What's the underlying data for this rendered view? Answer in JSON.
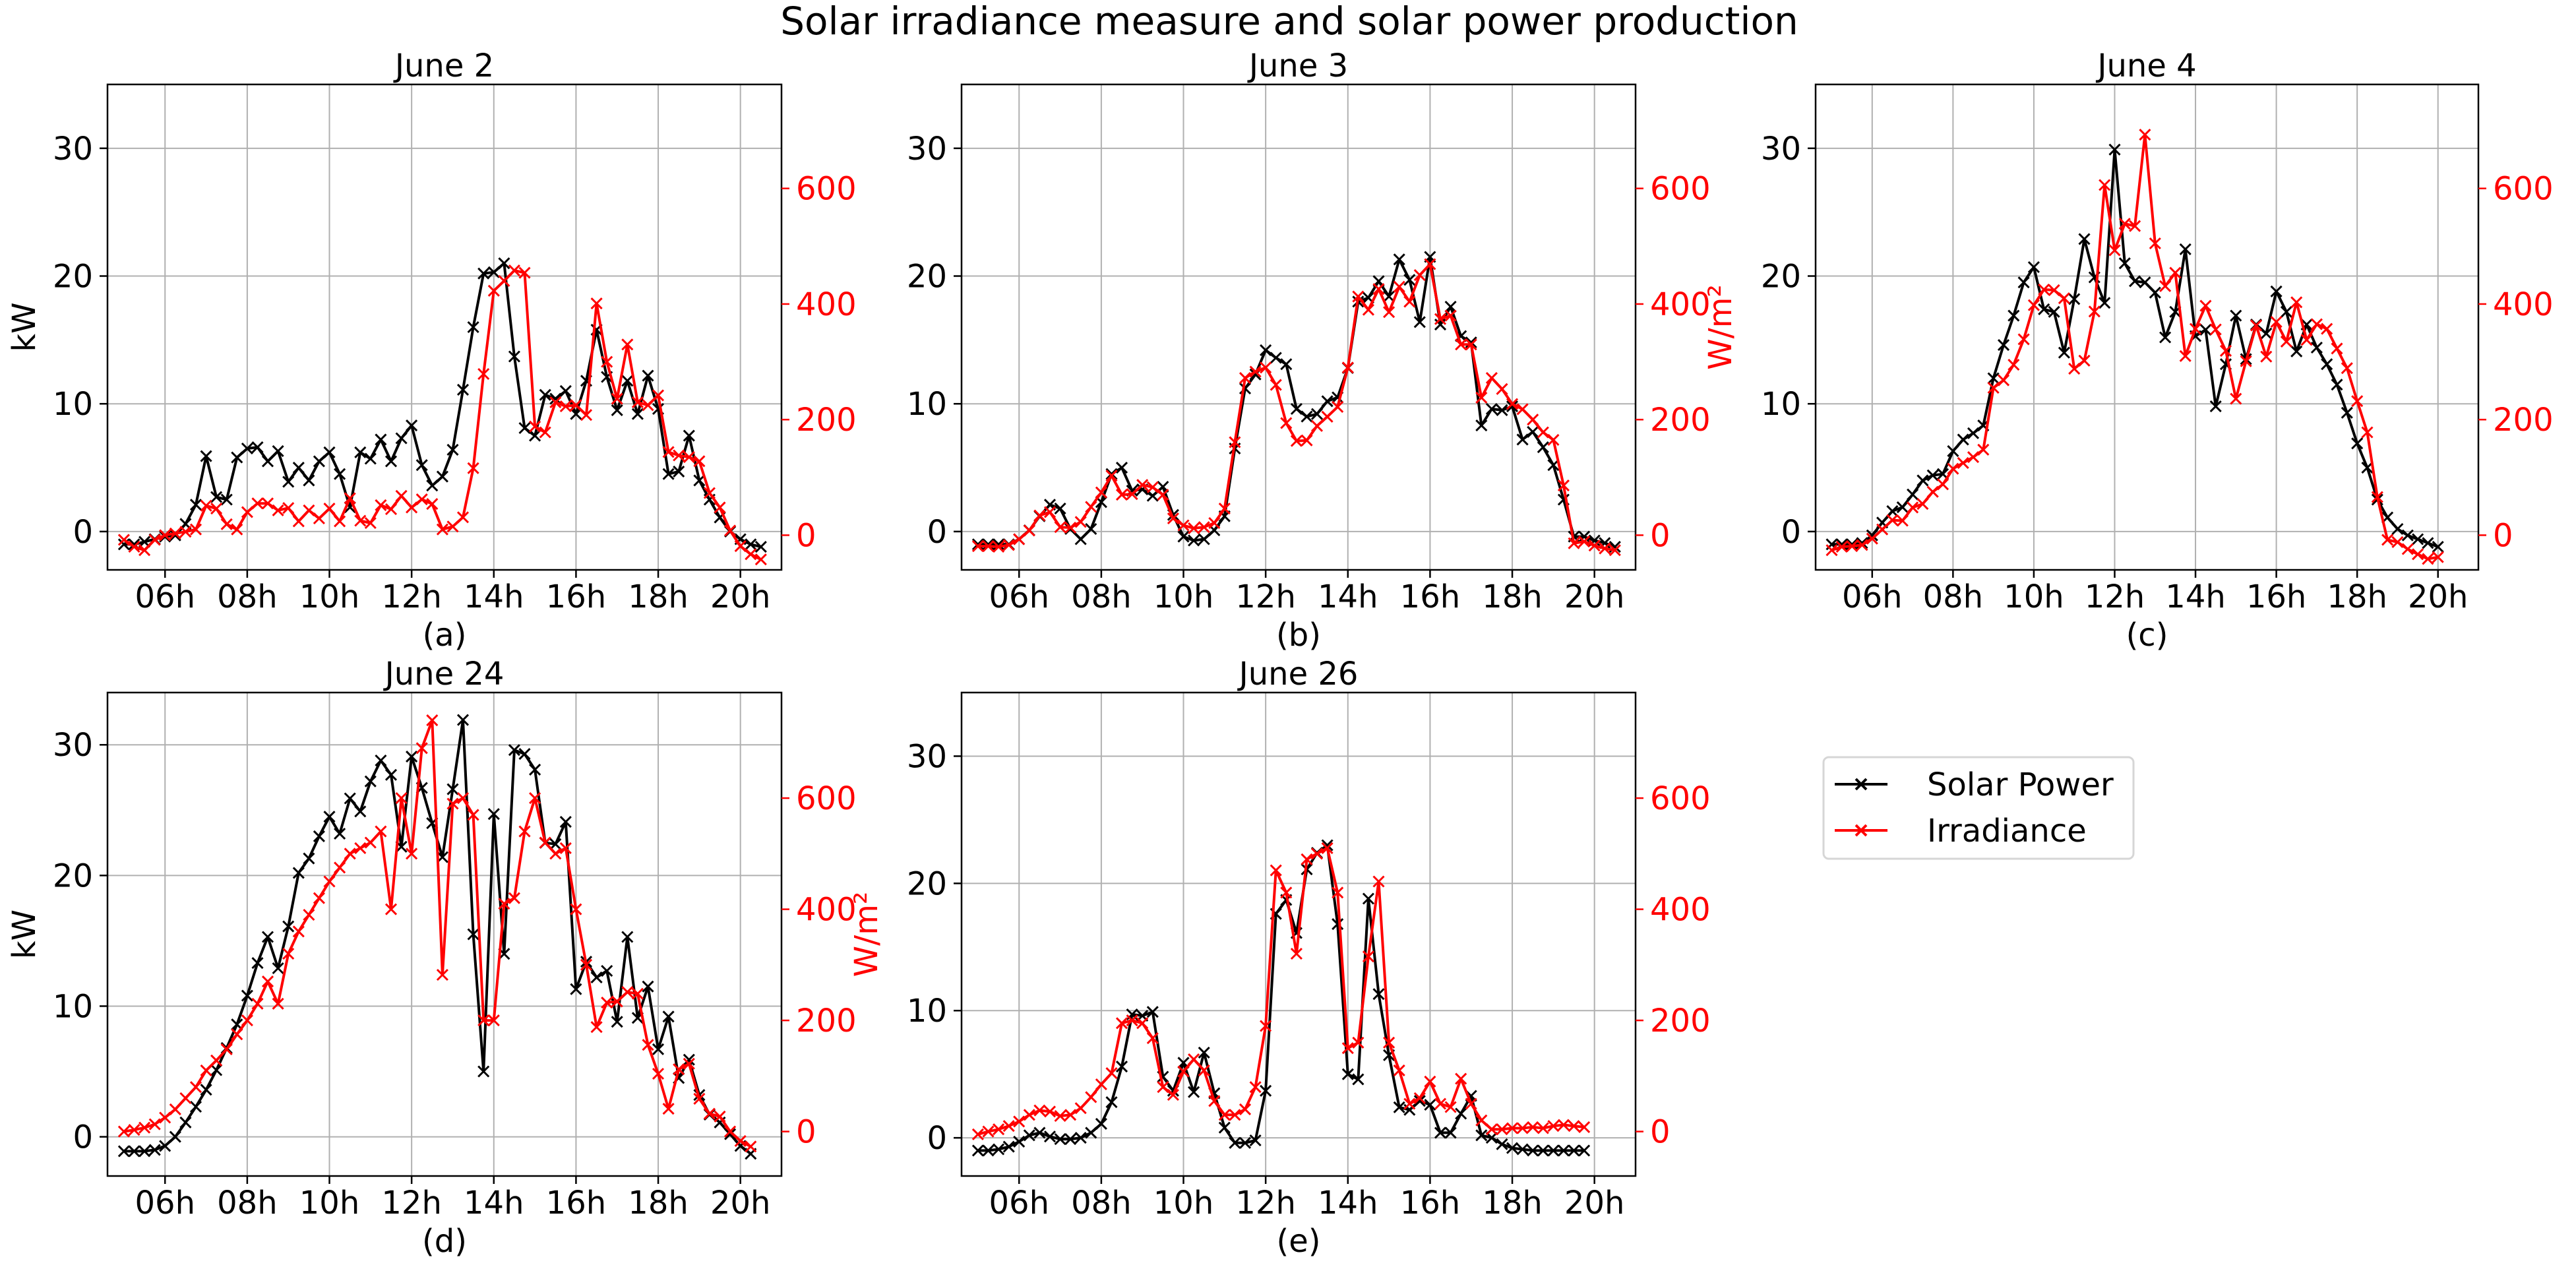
{
  "figure": {
    "title": "Solar irradiance measure and solar power production",
    "legend": {
      "position": "right",
      "entries": [
        {
          "label": "Solar Power",
          "color": "#000000",
          "marker": "x"
        },
        {
          "label": "Irradiance",
          "color": "#ff0000",
          "marker": "x"
        }
      ]
    },
    "colors": {
      "power": "#000000",
      "irradiance": "#ff0000",
      "grid": "#b0b0b0"
    }
  },
  "chart_data": [
    {
      "type": "line",
      "title": "June 2",
      "caption": "(a)",
      "ylabel_left": "kW",
      "ylabel_right": "",
      "xlim": [
        4.6,
        21.0
      ],
      "xticks": [
        6,
        8,
        10,
        12,
        14,
        16,
        18,
        20
      ],
      "xtick_labels": [
        "06h",
        "08h",
        "10h",
        "12h",
        "14h",
        "16h",
        "18h",
        "20h"
      ],
      "ylim_left": [
        -3,
        35
      ],
      "yticks_left": [
        0,
        10,
        20,
        30
      ],
      "ylim_right": [
        -60,
        780
      ],
      "yticks_right": [
        0,
        200,
        400,
        600
      ],
      "x_start": 5.0,
      "x_step": 0.25,
      "series": [
        {
          "name": "Solar Power",
          "axis": "left",
          "values": [
            -1.0,
            -1.0,
            -0.8,
            -0.6,
            -0.4,
            -0.3,
            0.6,
            2.1,
            5.9,
            2.7,
            2.5,
            5.8,
            6.5,
            6.6,
            5.5,
            6.3,
            3.9,
            5.0,
            4.0,
            5.5,
            6.2,
            4.5,
            1.9,
            6.2,
            5.7,
            7.2,
            5.5,
            7.3,
            8.3,
            5.2,
            3.6,
            4.3,
            6.4,
            11.1,
            16.0,
            20.2,
            20.3,
            21.0,
            13.7,
            8.1,
            7.5,
            10.7,
            10.4,
            11.0,
            9.2,
            11.8,
            15.8,
            12.1,
            9.5,
            11.8,
            9.2,
            12.2,
            9.6,
            4.5,
            4.7,
            7.5,
            4.0,
            2.5,
            1.1,
            0.0,
            -0.6,
            -1.0,
            -1.2
          ]
        },
        {
          "name": "Irradiance",
          "axis": "right",
          "values": [
            -8,
            -20,
            -26,
            -8,
            0,
            3,
            6,
            10,
            51,
            46,
            19,
            10,
            40,
            55,
            55,
            43,
            47,
            24,
            43,
            29,
            46,
            24,
            64,
            25,
            21,
            52,
            45,
            68,
            48,
            62,
            54,
            10,
            15,
            31,
            116,
            279,
            423,
            440,
            458,
            454,
            188,
            178,
            230,
            223,
            225,
            208,
            401,
            300,
            236,
            330,
            230,
            225,
            242,
            144,
            138,
            135,
            128,
            73,
            48,
            8,
            -19,
            -33,
            -42
          ]
        }
      ]
    },
    {
      "type": "line",
      "title": "June 3",
      "caption": "(b)",
      "ylabel_left": "",
      "ylabel_right": "W/m²",
      "xlim": [
        4.6,
        21.0
      ],
      "xticks": [
        6,
        8,
        10,
        12,
        14,
        16,
        18,
        20
      ],
      "xtick_labels": [
        "06h",
        "08h",
        "10h",
        "12h",
        "14h",
        "16h",
        "18h",
        "20h"
      ],
      "ylim_left": [
        -3,
        35
      ],
      "yticks_left": [
        0,
        10,
        20,
        30
      ],
      "ylim_right": [
        -60,
        780
      ],
      "yticks_right": [
        0,
        200,
        400,
        600
      ],
      "x_start": 5.0,
      "x_step": 0.25,
      "series": [
        {
          "name": "Solar Power",
          "axis": "left",
          "values": [
            -1.0,
            -1.0,
            -1.0,
            -1.0,
            -0.6,
            0.1,
            1.2,
            2.1,
            1.8,
            0.2,
            -0.6,
            0.2,
            2.3,
            4.5,
            5.0,
            3.2,
            3.3,
            2.8,
            3.5,
            1.3,
            -0.4,
            -0.7,
            -0.6,
            0.1,
            1.2,
            6.5,
            11.2,
            12.3,
            14.2,
            13.6,
            13.1,
            9.6,
            9.0,
            9.2,
            10.2,
            10.5,
            12.8,
            18.0,
            18.3,
            19.6,
            18.4,
            21.3,
            19.7,
            16.4,
            21.5,
            16.2,
            17.6,
            15.3,
            14.8,
            8.3,
            9.6,
            9.5,
            9.8,
            7.2,
            7.8,
            6.6,
            5.2,
            2.5,
            -0.4,
            -0.4,
            -0.7,
            -0.9,
            -1.2
          ]
        },
        {
          "name": "Irradiance",
          "axis": "right",
          "values": [
            -19,
            -19,
            -20,
            -17,
            -7,
            8,
            34,
            40,
            14,
            13,
            23,
            49,
            74,
            103,
            70,
            71,
            87,
            83,
            70,
            29,
            17,
            12,
            14,
            21,
            46,
            161,
            272,
            283,
            290,
            260,
            194,
            163,
            164,
            189,
            205,
            222,
            290,
            413,
            390,
            426,
            386,
            430,
            404,
            450,
            469,
            374,
            380,
            330,
            330,
            238,
            272,
            253,
            227,
            218,
            200,
            178,
            165,
            86,
            -14,
            -11,
            -18,
            -23,
            -26
          ]
        }
      ]
    },
    {
      "type": "line",
      "title": "June 4",
      "caption": "(c)",
      "ylabel_left": "",
      "ylabel_right": "",
      "xlim": [
        4.6,
        21.0
      ],
      "xticks": [
        6,
        8,
        10,
        12,
        14,
        16,
        18,
        20
      ],
      "xtick_labels": [
        "06h",
        "08h",
        "10h",
        "12h",
        "14h",
        "16h",
        "18h",
        "20h"
      ],
      "ylim_left": [
        -3,
        35
      ],
      "yticks_left": [
        0,
        10,
        20,
        30
      ],
      "ylim_right": [
        -60,
        780
      ],
      "yticks_right": [
        0,
        200,
        400,
        600
      ],
      "x_start": 5.0,
      "x_step": 0.25,
      "series": [
        {
          "name": "Solar Power",
          "axis": "left",
          "values": [
            -1.0,
            -1.0,
            -1.0,
            -0.9,
            -0.3,
            0.7,
            1.6,
            1.9,
            2.9,
            4.0,
            4.4,
            4.5,
            6.3,
            7.2,
            7.7,
            8.3,
            12.0,
            14.6,
            16.9,
            19.5,
            20.7,
            17.4,
            17.2,
            14.0,
            18.2,
            22.9,
            19.9,
            17.9,
            29.9,
            21.0,
            19.6,
            19.5,
            18.7,
            15.2,
            17.2,
            22.1,
            15.3,
            15.8,
            9.8,
            13.1,
            16.9,
            13.5,
            16.2,
            15.5,
            18.8,
            17.2,
            14.1,
            16.2,
            14.4,
            13.1,
            11.5,
            9.3,
            6.9,
            5.0,
            2.5,
            1.1,
            0.2,
            -0.3,
            -0.6,
            -0.9,
            -1.2
          ]
        },
        {
          "name": "Irradiance",
          "axis": "right",
          "values": [
            -26,
            -20,
            -19,
            -17,
            -6,
            10,
            26,
            25,
            48,
            54,
            75,
            88,
            115,
            125,
            135,
            148,
            255,
            268,
            295,
            339,
            398,
            425,
            424,
            410,
            288,
            302,
            387,
            606,
            493,
            539,
            535,
            693,
            505,
            431,
            454,
            310,
            357,
            397,
            356,
            319,
            236,
            301,
            363,
            309,
            369,
            335,
            403,
            338,
            365,
            357,
            323,
            289,
            232,
            178,
            66,
            -8,
            -12,
            -24,
            -33,
            -41,
            -38
          ]
        }
      ]
    },
    {
      "type": "line",
      "title": "June 24",
      "caption": "(d)",
      "ylabel_left": "kW",
      "ylabel_right": "W/m²",
      "xlim": [
        4.6,
        21.0
      ],
      "xticks": [
        6,
        8,
        10,
        12,
        14,
        16,
        18,
        20
      ],
      "xtick_labels": [
        "06h",
        "08h",
        "10h",
        "12h",
        "14h",
        "16h",
        "18h",
        "20h"
      ],
      "ylim_left": [
        -3,
        34
      ],
      "yticks_left": [
        0,
        10,
        20,
        30
      ],
      "ylim_right": [
        -80,
        790
      ],
      "yticks_right": [
        0,
        200,
        400,
        600
      ],
      "x_start": 5.0,
      "x_step": 0.25,
      "series": [
        {
          "name": "Solar Power",
          "axis": "left",
          "values": [
            -1.1,
            -1.1,
            -1.1,
            -1.0,
            -0.7,
            0.0,
            1.1,
            2.3,
            3.6,
            5.1,
            6.8,
            8.6,
            10.8,
            13.3,
            15.3,
            12.9,
            16.1,
            20.2,
            21.3,
            23.0,
            24.5,
            23.2,
            25.9,
            24.9,
            27.2,
            28.8,
            27.7,
            22.2,
            29.1,
            26.7,
            24.0,
            21.4,
            26.6,
            31.9,
            15.5,
            5.0,
            24.7,
            14.0,
            29.6,
            29.3,
            28.1,
            22.5,
            22.4,
            24.1,
            11.3,
            13.4,
            12.2,
            12.7,
            8.8,
            15.3,
            9.1,
            11.5,
            6.7,
            9.2,
            4.5,
            5.9,
            3.2,
            1.7,
            1.1,
            0.2,
            -0.7,
            -1.3
          ]
        },
        {
          "name": "Irradiance",
          "axis": "right",
          "values": [
            0,
            3,
            7,
            13,
            25,
            40,
            60,
            80,
            110,
            128,
            148,
            175,
            200,
            230,
            270,
            230,
            320,
            360,
            390,
            420,
            450,
            475,
            500,
            510,
            520,
            540,
            400,
            600,
            500,
            690,
            740,
            282,
            590,
            600,
            570,
            200,
            200,
            410,
            420,
            540,
            600,
            520,
            500,
            510,
            400,
            300,
            188,
            232,
            234,
            251,
            248,
            156,
            104,
            41,
            112,
            122,
            59,
            32,
            27,
            0,
            -17,
            -27
          ]
        }
      ]
    },
    {
      "type": "line",
      "title": "June 26",
      "caption": "(e)",
      "ylabel_left": "",
      "ylabel_right": "",
      "xlim": [
        4.6,
        21.0
      ],
      "xticks": [
        6,
        8,
        10,
        12,
        14,
        16,
        18,
        20
      ],
      "xtick_labels": [
        "06h",
        "08h",
        "10h",
        "12h",
        "14h",
        "16h",
        "18h",
        "20h"
      ],
      "ylim_left": [
        -3,
        35
      ],
      "yticks_left": [
        0,
        10,
        20,
        30
      ],
      "ylim_right": [
        -80,
        790
      ],
      "yticks_right": [
        0,
        200,
        400,
        600
      ],
      "x_start": 5.0,
      "x_step": 0.25,
      "series": [
        {
          "name": "Solar Power",
          "axis": "left",
          "values": [
            -1.0,
            -1.0,
            -0.9,
            -0.7,
            -0.3,
            0.2,
            0.4,
            0.1,
            -0.1,
            -0.1,
            0.0,
            0.4,
            1.1,
            2.8,
            5.6,
            9.7,
            9.6,
            9.9,
            4.8,
            3.7,
            5.9,
            3.6,
            6.7,
            3.5,
            0.8,
            -0.4,
            -0.4,
            -0.2,
            3.7,
            17.6,
            18.7,
            16.1,
            21.1,
            22.4,
            23.0,
            16.8,
            5.0,
            4.6,
            18.8,
            11.3,
            6.5,
            2.4,
            2.2,
            2.9,
            2.6,
            0.4,
            0.4,
            1.9,
            3.3,
            0.2,
            0.0,
            -0.5,
            -0.8,
            -0.9,
            -1.0,
            -1.0,
            -1.0,
            -1.0,
            -1.0,
            -1.0
          ]
        },
        {
          "name": "Irradiance",
          "axis": "right",
          "values": [
            -5,
            0,
            4,
            10,
            18,
            30,
            38,
            36,
            28,
            30,
            42,
            62,
            85,
            105,
            195,
            200,
            195,
            168,
            80,
            66,
            108,
            130,
            110,
            55,
            30,
            30,
            40,
            80,
            190,
            470,
            430,
            320,
            490,
            500,
            510,
            430,
            150,
            160,
            315,
            450,
            160,
            110,
            50,
            60,
            90,
            50,
            44,
            95,
            50,
            20,
            4,
            4,
            6,
            6,
            8,
            6,
            10,
            12,
            10,
            8
          ]
        }
      ]
    }
  ]
}
